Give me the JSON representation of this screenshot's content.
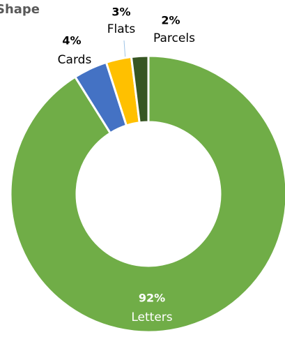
{
  "chart_data": {
    "type": "donut",
    "title": "Shape",
    "categories": [
      "Letters",
      "Cards",
      "Flats",
      "Parcels"
    ],
    "values": [
      92,
      4,
      3,
      2
    ],
    "value_labels": [
      "92%",
      "4%",
      "3%",
      "2%"
    ],
    "colors": [
      "#70ad47",
      "#4472c4",
      "#ffc000",
      "#375623"
    ]
  }
}
